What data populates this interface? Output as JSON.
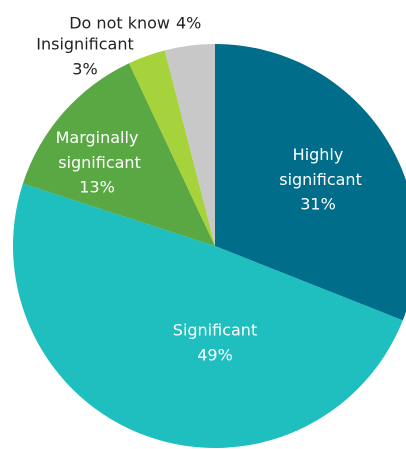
{
  "chart_data": {
    "type": "pie",
    "categories": [
      "Highly significant",
      "Significant",
      "Marginally significant",
      "Insignificant",
      "Do not know"
    ],
    "values": [
      31,
      49,
      13,
      3,
      4
    ],
    "value_labels": [
      "31%",
      "49%",
      "13%",
      "3%",
      "4%"
    ],
    "colors": [
      "#006d8a",
      "#1fbfbf",
      "#5aa843",
      "#a6d23c",
      "#c8c8c8"
    ]
  }
}
